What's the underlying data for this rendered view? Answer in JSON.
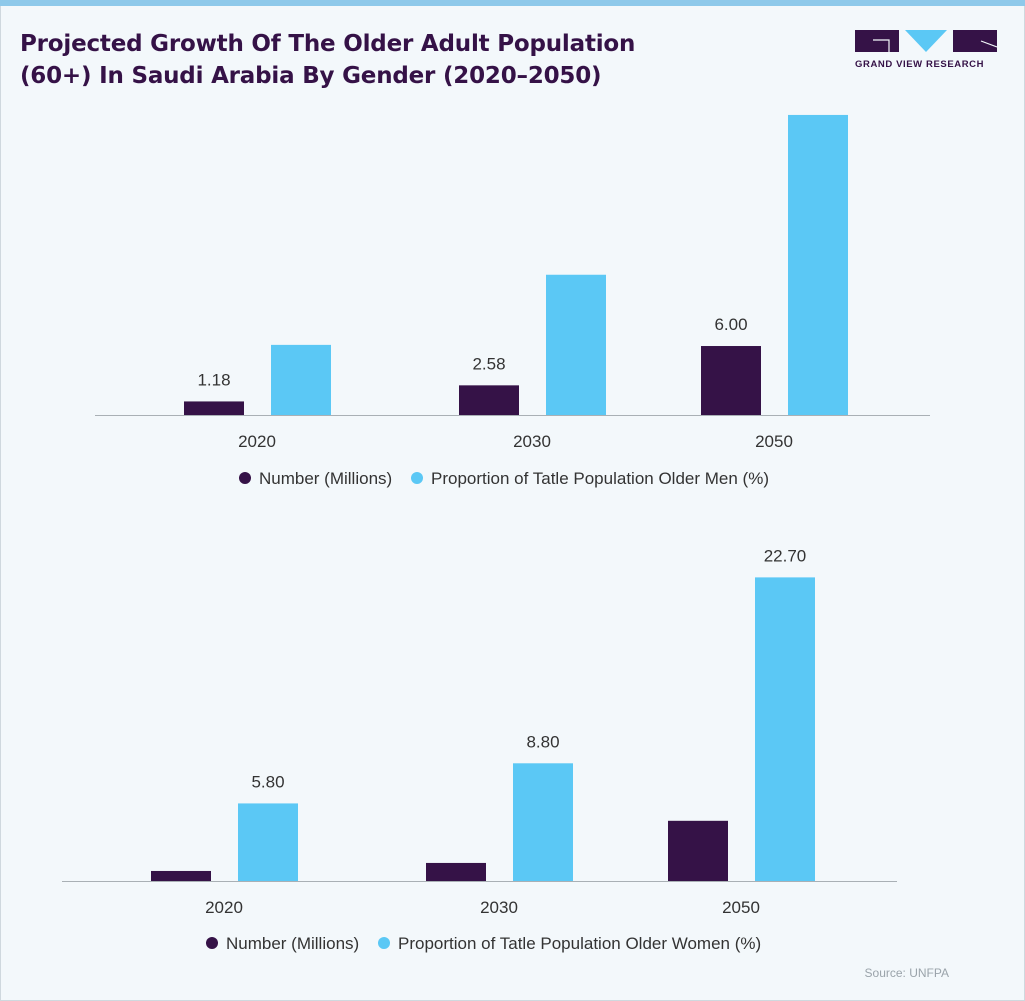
{
  "title_lines": [
    "Projected Growth Of The Older Adult Population",
    "(60+) In Saudi Arabia By Gender (2020–2050)"
  ],
  "logo_text": "GRAND VIEW RESEARCH",
  "source": "Source: UNFPA",
  "colors": {
    "number": "#351247",
    "proportion": "#5bc8f5",
    "accent_stripe": "#8ec9ea"
  },
  "chart_data": [
    {
      "type": "bar",
      "categories": [
        "2020",
        "2030",
        "2050"
      ],
      "series": [
        {
          "name": "Number (Millions)",
          "values": [
            1.18,
            2.58,
            6.0
          ],
          "labels": [
            "1.18",
            "2.58",
            "6.00"
          ]
        },
        {
          "name": "Proportion of Tatle Population Older Men (%)",
          "values": [
            6.1,
            12.2,
            26.1
          ],
          "labels": [
            "",
            "",
            ""
          ]
        }
      ],
      "ylim": [
        0,
        27.4
      ],
      "grid": false,
      "legend": "bottom"
    },
    {
      "type": "bar",
      "categories": [
        "2020",
        "2030",
        "2050"
      ],
      "series": [
        {
          "name": "Number (Millions)",
          "values": [
            0.75,
            1.35,
            4.5
          ],
          "labels": [
            "",
            "",
            ""
          ]
        },
        {
          "name": "Proportion of Tatle Population Older Women (%)",
          "values": [
            5.8,
            8.8,
            22.7
          ],
          "labels": [
            "5.80",
            "8.80",
            "22.70"
          ]
        }
      ],
      "ylim": [
        0,
        24
      ],
      "grid": false,
      "legend": "bottom"
    }
  ]
}
